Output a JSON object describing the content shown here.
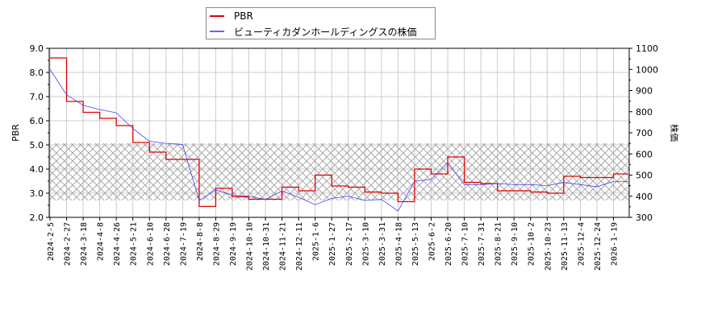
{
  "legend": {
    "items": [
      {
        "label": "PBR",
        "color": "#dd0000"
      },
      {
        "label": "ビューティカダンホールディングスの株価",
        "color": "#4444ee"
      }
    ]
  },
  "axes": {
    "left_label": "PBR",
    "right_label": "株価",
    "left_ticks": [
      "9.0",
      "8.0",
      "7.0",
      "6.0",
      "5.0",
      "4.0",
      "3.0",
      "2.0"
    ],
    "right_ticks": [
      "1100",
      "1000",
      "900",
      "800",
      "700",
      "600",
      "500",
      "400",
      "300"
    ],
    "x_ticks": [
      "2024-2-5",
      "2024-2-27",
      "2024-3-18",
      "2024-4-8",
      "2024-4-26",
      "2024-5-21",
      "2024-6-10",
      "2024-6-28",
      "2024-7-19",
      "2024-8-8",
      "2024-8-29",
      "2024-9-19",
      "2024-10-10",
      "2024-10-31",
      "2024-11-21",
      "2024-12-11",
      "2025-1-6",
      "2025-1-27",
      "2025-2-17",
      "2025-3-10",
      "2025-3-31",
      "2025-4-18",
      "2025-5-13",
      "2025-6-2",
      "2025-6-20",
      "2025-7-10",
      "2025-7-31",
      "2025-8-21",
      "2025-9-10",
      "2025-10-2",
      "2025-10-23",
      "2025-11-13",
      "2025-12-4",
      "2025-12-24",
      "2026-1-19"
    ]
  },
  "chart_data": {
    "type": "line",
    "title": "",
    "xlabel": "",
    "ylabel": "PBR",
    "ylabel_right": "株価",
    "ylim": [
      2.0,
      9.0
    ],
    "ylim_right": [
      300,
      1100
    ],
    "grid": true,
    "legend_position": "top",
    "shaded_band_pbr": [
      2.7,
      5.07
    ],
    "x": [
      "2024-2-5",
      "2024-2-27",
      "2024-3-18",
      "2024-4-8",
      "2024-4-26",
      "2024-5-21",
      "2024-6-10",
      "2024-6-28",
      "2024-7-19",
      "2024-8-8",
      "2024-8-29",
      "2024-9-19",
      "2024-10-10",
      "2024-10-31",
      "2024-11-21",
      "2024-12-11",
      "2025-1-6",
      "2025-1-27",
      "2025-2-17",
      "2025-3-10",
      "2025-3-31",
      "2025-4-18",
      "2025-5-13",
      "2025-6-2",
      "2025-6-20",
      "2025-7-10",
      "2025-7-31",
      "2025-8-21",
      "2025-9-10",
      "2025-10-2",
      "2025-10-23",
      "2025-11-13",
      "2025-12-4",
      "2025-12-24",
      "2026-1-19"
    ],
    "series": [
      {
        "name": "PBR",
        "axis": "left",
        "color": "#dd0000",
        "values": [
          8.6,
          6.8,
          6.35,
          6.1,
          5.8,
          5.1,
          4.7,
          4.4,
          4.4,
          2.45,
          3.2,
          2.85,
          2.75,
          2.75,
          3.25,
          3.1,
          3.75,
          3.3,
          3.25,
          3.05,
          3.0,
          2.65,
          4.0,
          3.8,
          4.5,
          3.45,
          3.4,
          3.1,
          3.1,
          3.05,
          3.0,
          3.7,
          3.65,
          3.65,
          3.8
        ]
      },
      {
        "name": "ビューティカダンホールディングスの株価",
        "axis": "right",
        "color": "#4444ee",
        "values": [
          1000,
          880,
          830,
          810,
          795,
          720,
          660,
          650,
          645,
          380,
          430,
          405,
          400,
          385,
          425,
          395,
          360,
          390,
          400,
          380,
          385,
          330,
          470,
          480,
          560,
          455,
          455,
          460,
          455,
          455,
          450,
          465,
          455,
          445,
          470
        ]
      }
    ]
  }
}
